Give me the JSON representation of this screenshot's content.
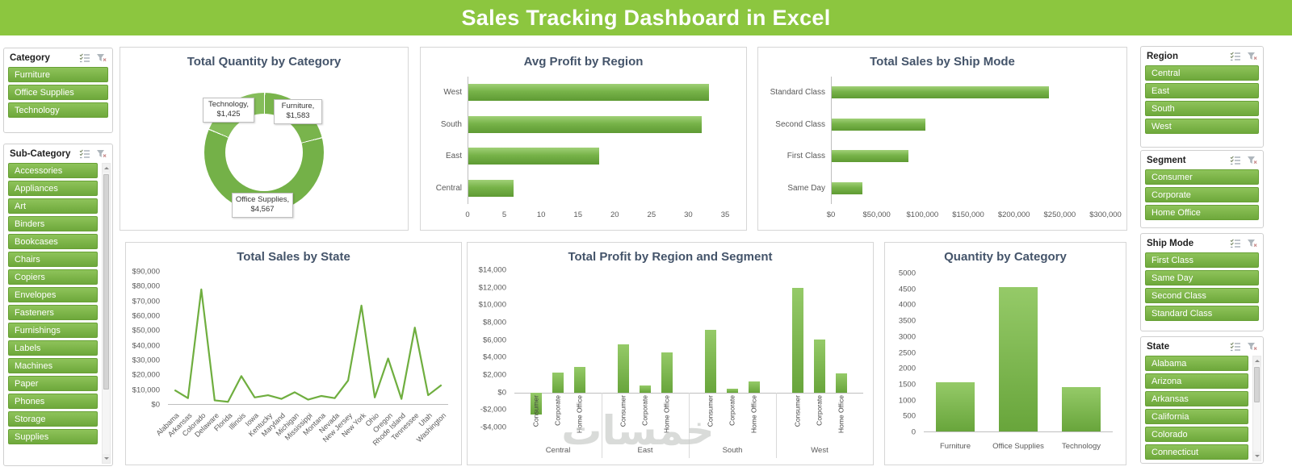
{
  "header": {
    "title": "Sales Tracking Dashboard in Excel"
  },
  "watermark": "خمسات",
  "colors": {
    "banner_green": "#8CC63F",
    "slicer_green": "#77B043",
    "bar_green": "#74B247",
    "chart_title_blue": "#44546A"
  },
  "slicers": {
    "category": {
      "title": "Category",
      "items": [
        "Furniture",
        "Office Supplies",
        "Technology"
      ]
    },
    "sub_category": {
      "title": "Sub-Category",
      "items": [
        "Accessories",
        "Appliances",
        "Art",
        "Binders",
        "Bookcases",
        "Chairs",
        "Copiers",
        "Envelopes",
        "Fasteners",
        "Furnishings",
        "Labels",
        "Machines",
        "Paper",
        "Phones",
        "Storage",
        "Supplies"
      ]
    },
    "region": {
      "title": "Region",
      "items": [
        "Central",
        "East",
        "South",
        "West"
      ]
    },
    "segment": {
      "title": "Segment",
      "items": [
        "Consumer",
        "Corporate",
        "Home Office"
      ]
    },
    "ship_mode": {
      "title": "Ship Mode",
      "items": [
        "First Class",
        "Same Day",
        "Second Class",
        "Standard Class"
      ]
    },
    "state": {
      "title": "State",
      "items": [
        "Alabama",
        "Arizona",
        "Arkansas",
        "California",
        "Colorado",
        "Connecticut"
      ]
    }
  },
  "chart_data": [
    {
      "type": "pie",
      "subtype": "donut",
      "title": "Total Quantity by Category",
      "labels": [
        "Furniture",
        "Office Supplies",
        "Technology"
      ],
      "values": [
        1583,
        4567,
        1425
      ],
      "data_labels": [
        "Furniture, $1,583",
        "Office Supplies, $4,567",
        "Technology, $1,425"
      ],
      "colors": [
        "#79B44C",
        "#74B148",
        "#85BD5A"
      ]
    },
    {
      "type": "bar",
      "orientation": "horizontal",
      "title": "Avg Profit by Region",
      "categories": [
        "West",
        "South",
        "East",
        "Central"
      ],
      "values": [
        32.8,
        31.8,
        17.9,
        6.3
      ],
      "xlim": [
        0,
        35
      ],
      "xticks": [
        "0",
        "5",
        "10",
        "15",
        "20",
        "25",
        "30",
        "35"
      ]
    },
    {
      "type": "bar",
      "orientation": "horizontal",
      "title": "Total Sales by Ship Mode",
      "categories": [
        "Standard Class",
        "Second Class",
        "First Class",
        "Same Day"
      ],
      "values": [
        238000,
        103000,
        85000,
        34000
      ],
      "xlim": [
        0,
        300000
      ],
      "xticks": [
        "$0",
        "$50,000",
        "$100,000",
        "$150,000",
        "$200,000",
        "$250,000",
        "$300,000"
      ]
    },
    {
      "type": "line",
      "title": "Total Sales by State",
      "categories": [
        "Alabama",
        "Arkansas",
        "Colorado",
        "Delaware",
        "Florida",
        "Illinois",
        "Iowa",
        "Kentucky",
        "Maryland",
        "Michigan",
        "Mississippi",
        "Montana",
        "Nevada",
        "New Jersey",
        "New York",
        "Ohio",
        "Oregon",
        "Rhode Island",
        "Tennessee",
        "Utah",
        "Washington"
      ],
      "values": [
        9500,
        4000,
        78000,
        2500,
        1500,
        19000,
        4500,
        6000,
        3500,
        8000,
        3000,
        5500,
        4000,
        16000,
        67000,
        4500,
        31000,
        3500,
        52000,
        6000,
        13000
      ],
      "ylim": [
        0,
        90000
      ],
      "yticks": [
        "$0",
        "$10,000",
        "$20,000",
        "$30,000",
        "$40,000",
        "$50,000",
        "$60,000",
        "$70,000",
        "$80,000",
        "$90,000"
      ],
      "line_color": "#6FAE3F"
    },
    {
      "type": "bar",
      "subtype": "grouped",
      "title": "Total Profit by Region and Segment",
      "categories": [
        "Central",
        "East",
        "South",
        "West"
      ],
      "series": [
        {
          "name": "Consumer",
          "values": [
            -2500,
            5500,
            7200,
            12000
          ]
        },
        {
          "name": "Corporate",
          "values": [
            2300,
            800,
            400,
            6100
          ]
        },
        {
          "name": "Home Office",
          "values": [
            2900,
            4600,
            1300,
            2200
          ]
        }
      ],
      "ylim": [
        -4000,
        14000
      ],
      "yticks": [
        "-$4,000",
        "-$2,000",
        "$0",
        "$2,000",
        "$4,000",
        "$6,000",
        "$8,000",
        "$10,000",
        "$12,000",
        "$14,000"
      ]
    },
    {
      "type": "bar",
      "title": "Quantity by Category",
      "categories": [
        "Furniture",
        "Office Supplies",
        "Technology"
      ],
      "values": [
        1550,
        4560,
        1400
      ],
      "ylim": [
        0,
        5000
      ],
      "yticks": [
        "0",
        "500",
        "1000",
        "1500",
        "2000",
        "2500",
        "3000",
        "3500",
        "4000",
        "4500",
        "5000"
      ]
    }
  ]
}
